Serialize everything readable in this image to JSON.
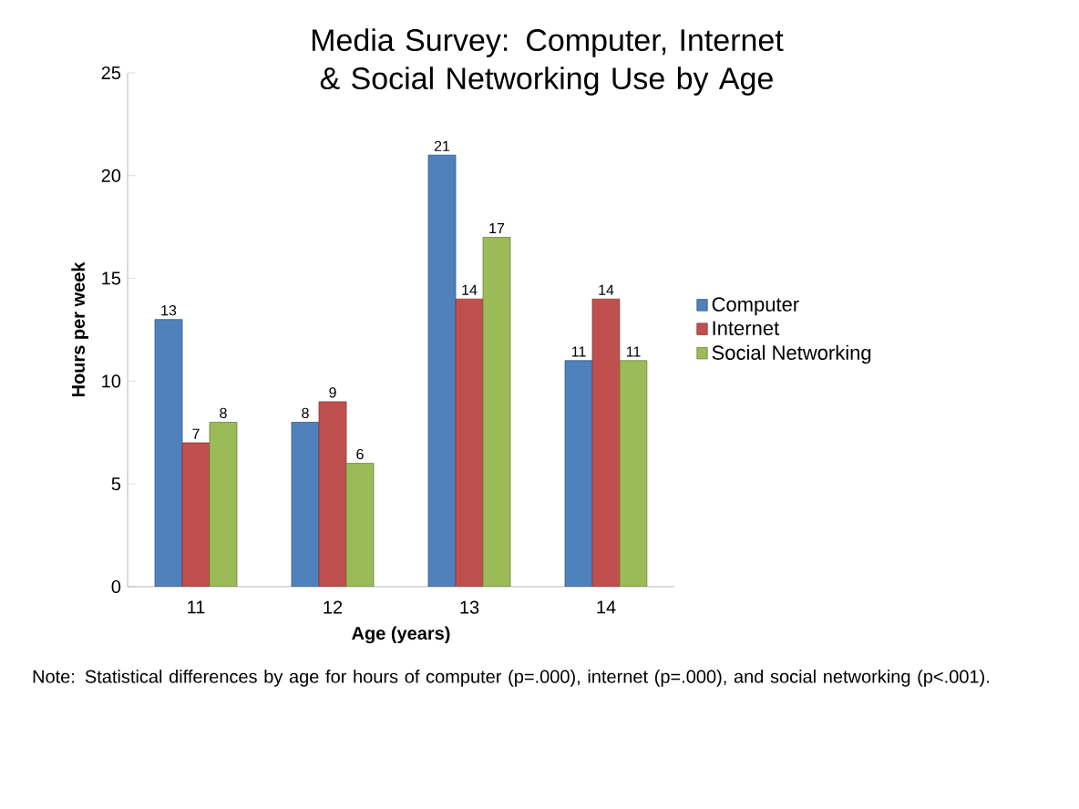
{
  "chart_data": {
    "type": "bar",
    "title": "Media Survey:  Computer, Internet & Social Networking Use by Age",
    "xlabel": "Age (years)",
    "ylabel": "Hours per week",
    "categories": [
      "11",
      "12",
      "13",
      "14"
    ],
    "series": [
      {
        "name": "Computer",
        "color": "#4f81bd",
        "values": [
          13,
          8,
          21,
          11
        ]
      },
      {
        "name": "Internet",
        "color": "#c0504d",
        "values": [
          7,
          9,
          14,
          14
        ]
      },
      {
        "name": "Social Networking",
        "color": "#9bbb59",
        "values": [
          8,
          6,
          17,
          11
        ]
      }
    ],
    "ylim": [
      0,
      25
    ],
    "yticks": [
      0,
      5,
      10,
      15,
      20,
      25
    ],
    "grid": false,
    "legend": "right",
    "data_labels": true,
    "annotations": [
      "Note: Statistical differences by age for hours of computer (p=.000), internet (p=.000), and social networking (p<.001)."
    ]
  }
}
